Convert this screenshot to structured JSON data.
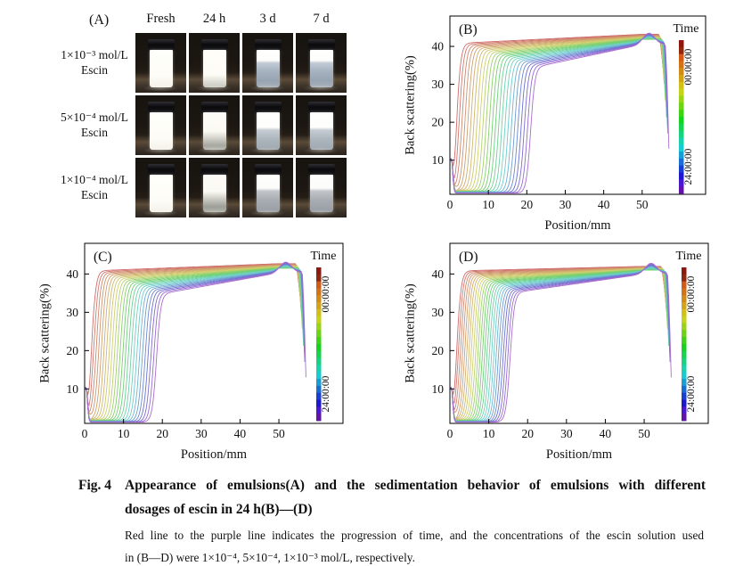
{
  "panelA": {
    "label": "(A)",
    "col_headers": [
      "Fresh",
      "24 h",
      "3 d",
      "7 d"
    ],
    "rows": [
      {
        "conc": "1×10⁻³ mol/L",
        "substance": "Escin",
        "states": [
          "full",
          "trace",
          "sep-a",
          "sep-a"
        ]
      },
      {
        "conc": "5×10⁻⁴ mol/L",
        "substance": "Escin",
        "states": [
          "full",
          "settle-a",
          "sep-b",
          "sep-b"
        ]
      },
      {
        "conc": "1×10⁻⁴ mol/L",
        "substance": "Escin",
        "states": [
          "full",
          "settle-b",
          "sep-c",
          "sep-c"
        ]
      }
    ]
  },
  "chart_data": [
    {
      "type": "line",
      "panel": "(B)",
      "xlabel": "Position/mm",
      "ylabel": "Back scattering(%)",
      "x_ticks": [
        0,
        10,
        20,
        30,
        40,
        50
      ],
      "y_ticks": [
        10,
        20,
        30,
        40
      ],
      "xlim": [
        0,
        66.5
      ],
      "ylim": [
        1,
        48
      ],
      "grid": false,
      "n_curves": 25,
      "series_description": "25 back-scattering scans recorded over 24 h; red line = 00:00:00 (earliest), purple line = 24:00:00 (latest)",
      "colorbar": {
        "title": "Time",
        "top_label": "00:00:00",
        "bottom_label": "24:00:00",
        "top_color": "#9e0000",
        "bottom_color": "#53108c",
        "position": "right-inside"
      },
      "curve_model": {
        "front_mm_first": 1.8,
        "front_mm_last": 21.0,
        "plateau_pct_first": 40.8,
        "plateau_pct_last": 34.3,
        "value50_pct_first": 43.2,
        "value50_pct_last": 40.5,
        "baseline_pct_first": 2.2,
        "baseline_pct_last": 1.3,
        "peak_mm": 51.8,
        "peak_bump_pct": 3.0,
        "drop_start_mm": 54.3,
        "end_mm": 57.0,
        "end_pct": 11.0
      }
    },
    {
      "type": "line",
      "panel": "(C)",
      "xlabel": "Position/mm",
      "ylabel": "Back scattering(%)",
      "x_ticks": [
        0,
        10,
        20,
        30,
        40,
        50
      ],
      "y_ticks": [
        10,
        20,
        30,
        40
      ],
      "xlim": [
        0,
        66.5
      ],
      "ylim": [
        1,
        48
      ],
      "grid": false,
      "n_curves": 25,
      "series_description": "25 back-scattering scans recorded over 24 h; red line = 00:00:00 (earliest), purple line = 24:00:00 (latest)",
      "colorbar": {
        "title": "Time",
        "top_label": "00:00:00",
        "bottom_label": "24:00:00",
        "top_color": "#9e0000",
        "bottom_color": "#53108c",
        "position": "right-inside"
      },
      "curve_model": {
        "front_mm_first": 1.8,
        "front_mm_last": 18.5,
        "plateau_pct_first": 40.8,
        "plateau_pct_last": 34.6,
        "value50_pct_first": 42.7,
        "value50_pct_last": 40.3,
        "baseline_pct_first": 2.2,
        "baseline_pct_last": 1.3,
        "peak_mm": 51.8,
        "peak_bump_pct": 2.8,
        "drop_start_mm": 54.3,
        "end_mm": 57.0,
        "end_pct": 11.0
      }
    },
    {
      "type": "line",
      "panel": "(D)",
      "xlabel": "Position/mm",
      "ylabel": "Back scattering(%)",
      "x_ticks": [
        0,
        10,
        20,
        30,
        40,
        50
      ],
      "y_ticks": [
        10,
        20,
        30,
        40
      ],
      "xlim": [
        0,
        66.5
      ],
      "ylim": [
        1,
        48
      ],
      "grid": false,
      "n_curves": 25,
      "series_description": "25 back-scattering scans recorded over 24 h; red line = 00:00:00 (earliest), purple line = 24:00:00 (latest)",
      "colorbar": {
        "title": "Time",
        "top_label": "00:00:00",
        "bottom_label": "24:00:00",
        "top_color": "#9e0000",
        "bottom_color": "#53108c",
        "position": "right-inside"
      },
      "curve_model": {
        "front_mm_first": 1.8,
        "front_mm_last": 15.5,
        "plateau_pct_first": 40.8,
        "plateau_pct_last": 35.0,
        "value50_pct_first": 42.0,
        "value50_pct_last": 40.0,
        "baseline_pct_first": 2.2,
        "baseline_pct_last": 1.3,
        "peak_mm": 51.8,
        "peak_bump_pct": 2.8,
        "drop_start_mm": 54.3,
        "end_mm": 57.0,
        "end_pct": 11.0
      }
    }
  ],
  "caption": {
    "fig_label": "Fig. 4",
    "title_line1": "Appearance of emulsions(A) and the sedimentation behavior of emulsions with different",
    "title_line2": "dosages of escin in 24 h(B)—(D)",
    "note_line1": "Red line to the purple line indicates the progression of time, and the concentrations of the escin solution used",
    "note_line2": "in (B—D) were 1×10⁻⁴, 5×10⁻⁴, 1×10⁻³ mol/L, respectively."
  }
}
